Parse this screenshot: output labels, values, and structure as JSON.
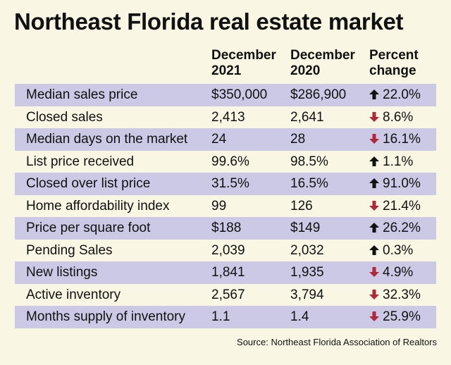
{
  "title": "Northeast Florida real estate market",
  "columns": {
    "dec2021": [
      "December",
      "2021"
    ],
    "dec2020": [
      "December",
      "2020"
    ],
    "change": [
      "Percent",
      "change"
    ]
  },
  "colors": {
    "background": "#f9f6e4",
    "row_shade": "#ccc9e6",
    "up_arrow": "#111111",
    "down_arrow": "#b0283a"
  },
  "rows": [
    {
      "label": "Median sales price",
      "dec2021": "$350,000",
      "dec2020": "$286,900",
      "direction": "up",
      "change": "22.0%"
    },
    {
      "label": "Closed sales",
      "dec2021": "2,413",
      "dec2020": "2,641",
      "direction": "down",
      "change": "8.6%"
    },
    {
      "label": "Median days on the market",
      "dec2021": "24",
      "dec2020": "28",
      "direction": "down",
      "change": "16.1%"
    },
    {
      "label": "List price received",
      "dec2021": "99.6%",
      "dec2020": "98.5%",
      "direction": "up",
      "change": "1.1%"
    },
    {
      "label": "Closed over list price",
      "dec2021": "31.5%",
      "dec2020": "16.5%",
      "direction": "up",
      "change": "91.0%"
    },
    {
      "label": "Home affordability index",
      "dec2021": "99",
      "dec2020": "126",
      "direction": "down",
      "change": "21.4%"
    },
    {
      "label": "Price per square foot",
      "dec2021": "$188",
      "dec2020": "$149",
      "direction": "up",
      "change": "26.2%"
    },
    {
      "label": "Pending Sales",
      "dec2021": "2,039",
      "dec2020": "2,032",
      "direction": "up",
      "change": "0.3%"
    },
    {
      "label": "New listings",
      "dec2021": "1,841",
      "dec2020": "1,935",
      "direction": "down",
      "change": "4.9%"
    },
    {
      "label": "Active inventory",
      "dec2021": "2,567",
      "dec2020": "3,794",
      "direction": "down",
      "change": "32.3%"
    },
    {
      "label": "Months supply of inventory",
      "dec2021": "1.1",
      "dec2020": "1.4",
      "direction": "down",
      "change": "25.9%"
    }
  ],
  "source": "Source: Northeast Florida Association of Realtors"
}
